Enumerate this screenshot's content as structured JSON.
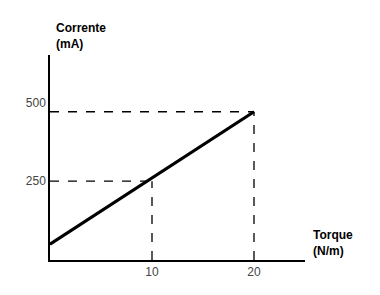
{
  "chart_data": {
    "type": "line",
    "xlabel": "Torque\n(N/m)",
    "ylabel": "Corrente\n(mA)",
    "series": [
      {
        "x": [
          0,
          20
        ],
        "values": [
          50,
          470
        ],
        "color": "#000000",
        "line_style": "solid"
      }
    ],
    "reference_points": {
      "color": "#000000",
      "line_style": "dashed",
      "points": [
        {
          "x": 10,
          "y": 250
        },
        {
          "x": 20,
          "y": 470
        }
      ]
    },
    "xlim": [
      0,
      25
    ],
    "ylim": [
      0,
      650
    ],
    "xticks": [
      10,
      20
    ],
    "yticks": [
      250,
      500
    ],
    "grid": false
  }
}
